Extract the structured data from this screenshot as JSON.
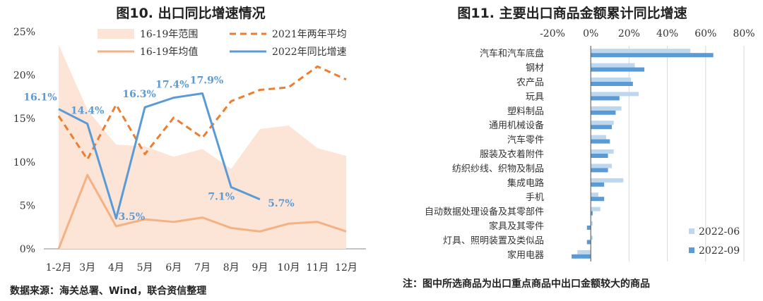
{
  "left_chart": {
    "title": "图10.  出口同比增速情况",
    "source_note": "数据来源：海关总署、Wind，联合资信整理",
    "chart_data": {
      "type": "line",
      "categories": [
        "1-2月",
        "3月",
        "4月",
        "5月",
        "6月",
        "7月",
        "8月",
        "9月",
        "10月",
        "11月",
        "12月"
      ],
      "ylim": [
        0,
        25
      ],
      "yticks": [
        "0%",
        "5%",
        "10%",
        "15%",
        "20%",
        "25%"
      ],
      "series": [
        {
          "name": "16-19年范围",
          "type": "area",
          "color": "#fce4d6",
          "upper": [
            23.5,
            16.0,
            12.0,
            11.8,
            10.6,
            11.5,
            9.2,
            13.8,
            14.2,
            11.6,
            10.7
          ],
          "lower": [
            0,
            0,
            0,
            0,
            0,
            0,
            0,
            0,
            0,
            0,
            0
          ]
        },
        {
          "name": "2021年两年平均",
          "type": "dashed",
          "color": "#ed7d31",
          "values": [
            15.3,
            10.3,
            16.6,
            10.9,
            15.1,
            12.8,
            17.0,
            18.3,
            18.6,
            21.0,
            19.5
          ]
        },
        {
          "name": "16-19年均值",
          "type": "line",
          "color": "#f4b183",
          "values": [
            0,
            8.5,
            2.6,
            3.4,
            3.1,
            3.6,
            2.4,
            2.0,
            2.9,
            3.1,
            2.0
          ]
        },
        {
          "name": "2022年同比增速",
          "type": "line",
          "color": "#5b9bd5",
          "values": [
            16.1,
            14.4,
            3.5,
            16.3,
            17.4,
            17.9,
            7.1,
            5.7,
            null,
            null,
            null
          ]
        }
      ],
      "data_labels": [
        "16.1%",
        "14.4%",
        "3.5%",
        "16.3%",
        "17.4%",
        "17.9%",
        "7.1%",
        "5.7%"
      ]
    }
  },
  "right_chart": {
    "title": "图11.  主要出口商品金额累计同比增速",
    "note": "注：图中所选商品为出口重点商品中出口金额较大的商品",
    "chart_data": {
      "type": "bar",
      "orientation": "horizontal",
      "xlim": [
        -20,
        80
      ],
      "xticks": [
        "-20%",
        "0%",
        "20%",
        "40%",
        "60%",
        "80%"
      ],
      "categories": [
        "汽车和汽车底盘",
        "钢材",
        "农产品",
        "玩具",
        "塑料制品",
        "通用机械设备",
        "汽车零件",
        "服装及衣着附件",
        "纺织纱线、织物及制品",
        "集成电路",
        "手机",
        "自动数据处理设备及其零部件",
        "家具及其零件",
        "灯具、照明装置及类似品",
        "家用电器"
      ],
      "series": [
        {
          "name": "2022-06",
          "color": "#bdd7ee",
          "values": [
            52,
            23,
            21,
            25,
            16,
            12,
            8,
            12,
            11,
            17,
            4,
            5,
            1,
            1,
            -7
          ]
        },
        {
          "name": "2022-09",
          "color": "#5b9bd5",
          "values": [
            64,
            28,
            22,
            15,
            13,
            11,
            10,
            9,
            9,
            7,
            7,
            1,
            -2,
            -2,
            -10
          ]
        }
      ]
    }
  }
}
